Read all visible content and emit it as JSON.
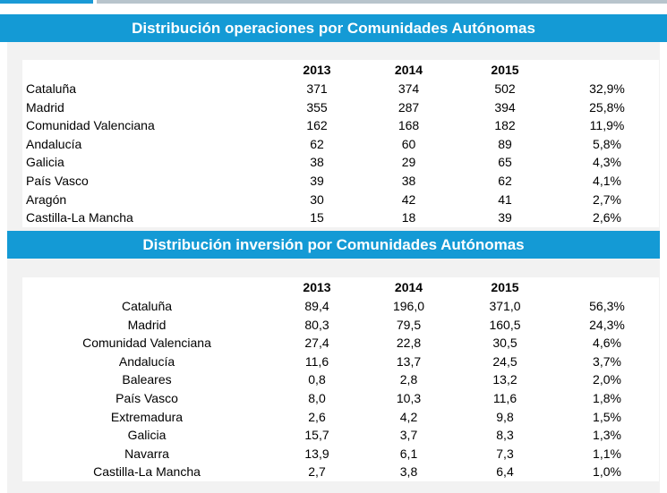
{
  "colors": {
    "banner": "#149ad5",
    "panel": "#f2f2f2",
    "accent_line": "#1a9ad6"
  },
  "table1": {
    "title": "Distribución operaciones por Comunidades Autónomas",
    "headers": [
      "",
      "2013",
      "2014",
      "2015",
      ""
    ],
    "rows": [
      [
        "Cataluña",
        "371",
        "374",
        "502",
        "32,9%"
      ],
      [
        "Madrid",
        "355",
        "287",
        "394",
        "25,8%"
      ],
      [
        "Comunidad Valenciana",
        "162",
        "168",
        "182",
        "11,9%"
      ],
      [
        "Andalucía",
        "62",
        "60",
        "89",
        "5,8%"
      ],
      [
        "Galicia",
        "38",
        "29",
        "65",
        "4,3%"
      ],
      [
        "País Vasco",
        "39",
        "38",
        "62",
        "4,1%"
      ],
      [
        "Aragón",
        "30",
        "42",
        "41",
        "2,7%"
      ],
      [
        "Castilla-La Mancha",
        "15",
        "18",
        "39",
        "2,6%"
      ]
    ]
  },
  "table2": {
    "title": "Distribución inversión  por Comunidades Autónomas",
    "headers": [
      "",
      "2013",
      "2014",
      "2015",
      ""
    ],
    "rows": [
      [
        "Cataluña",
        "89,4",
        "196,0",
        "371,0",
        "56,3%"
      ],
      [
        "Madrid",
        "80,3",
        "79,5",
        "160,5",
        "24,3%"
      ],
      [
        "Comunidad Valenciana",
        "27,4",
        "22,8",
        "30,5",
        "4,6%"
      ],
      [
        "Andalucía",
        "11,6",
        "13,7",
        "24,5",
        "3,7%"
      ],
      [
        "Baleares",
        "0,8",
        "2,8",
        "13,2",
        "2,0%"
      ],
      [
        "País Vasco",
        "8,0",
        "10,3",
        "11,6",
        "1,8%"
      ],
      [
        "Extremadura",
        "2,6",
        "4,2",
        "9,8",
        "1,5%"
      ],
      [
        "Galicia",
        "15,7",
        "3,7",
        "8,3",
        "1,3%"
      ],
      [
        "Navarra",
        "13,9",
        "6,1",
        "7,3",
        "1,1%"
      ],
      [
        "Castilla-La Mancha",
        "2,7",
        "3,8",
        "6,4",
        "1,0%"
      ]
    ]
  }
}
